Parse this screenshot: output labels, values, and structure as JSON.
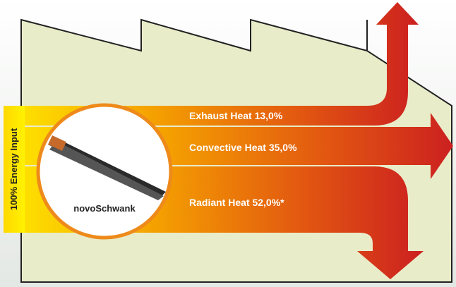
{
  "input_label": "100% Energy Input",
  "device_label": "novoSchwank",
  "flows": [
    {
      "label": "Exhaust Heat 13,0%"
    },
    {
      "label": "Convective Heat 35,0%"
    },
    {
      "label": "Radiant Heat 52,0%*"
    }
  ]
}
